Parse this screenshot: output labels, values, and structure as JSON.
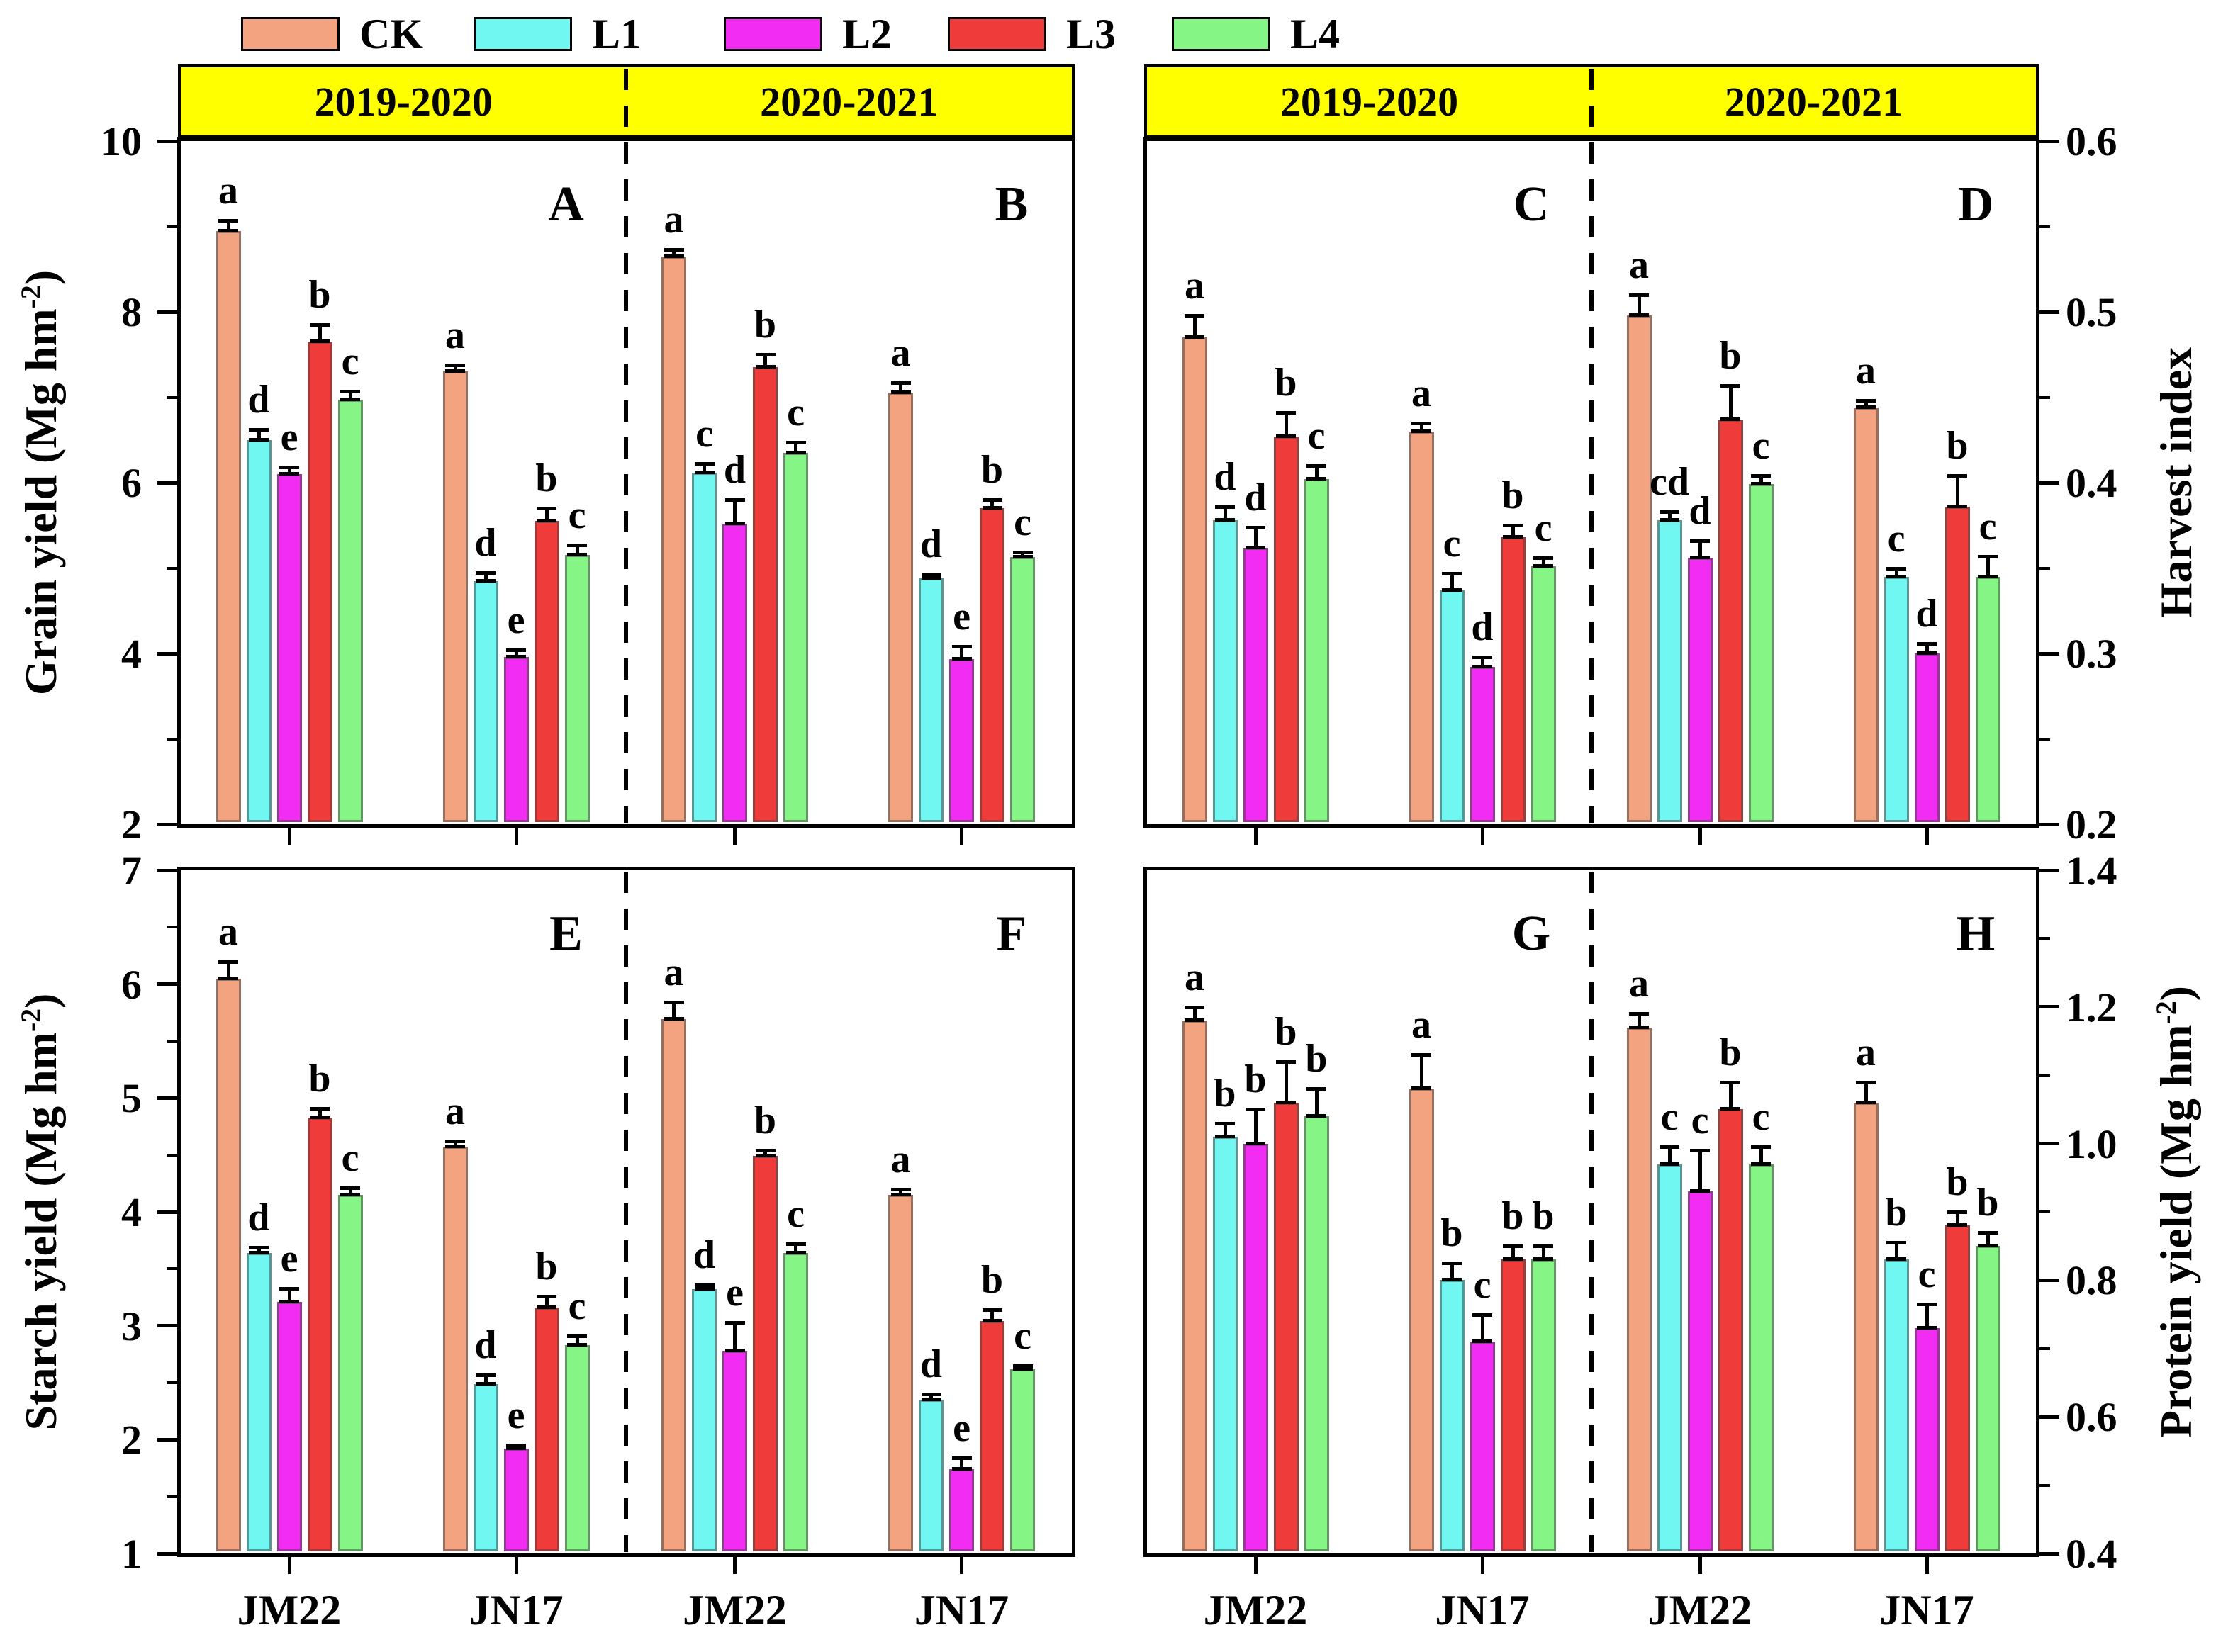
{
  "legend": {
    "items": [
      {
        "label": "CK",
        "color": "#F4A380"
      },
      {
        "label": "L1",
        "color": "#70F7F2"
      },
      {
        "label": "L2",
        "color": "#F32CF3"
      },
      {
        "label": "L3",
        "color": "#F03B3B"
      },
      {
        "label": "L4",
        "color": "#85F585"
      }
    ]
  },
  "headers": {
    "cells": [
      "2019-2020",
      "2020-2021",
      "2019-2020",
      "2020-2021"
    ],
    "background": "#FFFF00"
  },
  "axes": {
    "left_top": {
      "title_prefix": "Grain yield (Mg hm",
      "title_sup": "-2",
      "title_suffix": ")",
      "ylim": [
        2,
        10
      ],
      "tick_labels": [
        "10",
        "8",
        "6",
        "4",
        "2"
      ],
      "tick_values": [
        10,
        8,
        6,
        4,
        2
      ],
      "minor_values": [
        9,
        7,
        5,
        3
      ]
    },
    "right_top": {
      "title_prefix": "Harvest index",
      "title_sup": "",
      "title_suffix": "",
      "ylim": [
        0.2,
        0.6
      ],
      "tick_labels": [
        "0.6",
        "0.5",
        "0.4",
        "0.3",
        "0.2"
      ],
      "tick_values": [
        0.6,
        0.5,
        0.4,
        0.3,
        0.2
      ],
      "minor_values": [
        0.55,
        0.45,
        0.35,
        0.25
      ]
    },
    "left_bottom": {
      "title_prefix": "Starch yield (Mg hm",
      "title_sup": "-2",
      "title_suffix": ")",
      "ylim": [
        1,
        7
      ],
      "tick_labels": [
        "7",
        "6",
        "5",
        "4",
        "3",
        "2",
        "1"
      ],
      "tick_values": [
        7,
        6,
        5,
        4,
        3,
        2,
        1
      ],
      "minor_values": [
        6.5,
        5.5,
        4.5,
        3.5,
        2.5,
        1.5
      ]
    },
    "right_bottom": {
      "title_prefix": "Protein yield (Mg hm",
      "title_sup": "-2",
      "title_suffix": ")",
      "ylim": [
        0.4,
        1.4
      ],
      "tick_labels": [
        "1.4",
        "1.2",
        "1.0",
        "0.8",
        "0.6",
        "0.4"
      ],
      "tick_values": [
        1.4,
        1.2,
        1.0,
        0.8,
        0.6,
        0.4
      ],
      "minor_values": [
        1.3,
        1.1,
        0.9,
        0.7,
        0.5
      ]
    }
  },
  "x_axis": {
    "bottom_labels": [
      "JM22",
      "JN17",
      "JM22",
      "JN17",
      "JM22",
      "JN17",
      "JM22",
      "JN17"
    ]
  },
  "chart_data": [
    {
      "type": "bar",
      "panel_label": "A",
      "measure": "Grain yield (Mg hm-2)",
      "year": "2019-2020",
      "ylim": [
        2,
        10
      ],
      "categories": [
        "JM22",
        "JN17"
      ],
      "treatments": [
        "CK",
        "L1",
        "L2",
        "L3",
        "L4"
      ],
      "values": [
        [
          8.95,
          6.5,
          6.1,
          7.65,
          6.97
        ],
        [
          7.3,
          4.85,
          3.96,
          5.55,
          5.15
        ]
      ],
      "errors": [
        [
          0.12,
          0.12,
          0.08,
          0.2,
          0.1
        ],
        [
          0.08,
          0.1,
          0.08,
          0.15,
          0.12
        ]
      ],
      "letters": [
        [
          "a",
          "d",
          "e",
          "b",
          "c"
        ],
        [
          "a",
          "d",
          "e",
          "b",
          "c"
        ]
      ]
    },
    {
      "type": "bar",
      "panel_label": "B",
      "measure": "Grain yield (Mg hm-2)",
      "year": "2020-2021",
      "ylim": [
        2,
        10
      ],
      "categories": [
        "JM22",
        "JN17"
      ],
      "treatments": [
        "CK",
        "L1",
        "L2",
        "L3",
        "L4"
      ],
      "values": [
        [
          8.65,
          6.12,
          5.52,
          7.35,
          6.35
        ],
        [
          7.05,
          4.88,
          3.93,
          5.7,
          5.13
        ]
      ],
      "errors": [
        [
          0.08,
          0.1,
          0.28,
          0.15,
          0.12
        ],
        [
          0.12,
          0.05,
          0.15,
          0.1,
          0.06
        ]
      ],
      "letters": [
        [
          "a",
          "c",
          "d",
          "b",
          "c"
        ],
        [
          "a",
          "d",
          "e",
          "b",
          "c"
        ]
      ]
    },
    {
      "type": "bar",
      "panel_label": "C",
      "measure": "Harvest index",
      "year": "2019-2020",
      "ylim": [
        0.2,
        0.6
      ],
      "categories": [
        "JM22",
        "JN17"
      ],
      "treatments": [
        "CK",
        "L1",
        "L2",
        "L3",
        "L4"
      ],
      "values": [
        [
          0.485,
          0.378,
          0.362,
          0.427,
          0.402
        ],
        [
          0.43,
          0.337,
          0.292,
          0.368,
          0.351
        ]
      ],
      "errors": [
        [
          0.013,
          0.008,
          0.012,
          0.014,
          0.008
        ],
        [
          0.005,
          0.01,
          0.006,
          0.007,
          0.005
        ]
      ],
      "letters": [
        [
          "a",
          "d",
          "d",
          "b",
          "c"
        ],
        [
          "a",
          "c",
          "d",
          "b",
          "c"
        ]
      ]
    },
    {
      "type": "bar",
      "panel_label": "D",
      "measure": "Harvest index",
      "year": "2020-2021",
      "ylim": [
        0.2,
        0.6
      ],
      "categories": [
        "JM22",
        "JN17"
      ],
      "treatments": [
        "CK",
        "L1",
        "L2",
        "L3",
        "L4"
      ],
      "values": [
        [
          0.498,
          0.378,
          0.356,
          0.437,
          0.399
        ],
        [
          0.444,
          0.345,
          0.3,
          0.386,
          0.345
        ]
      ],
      "errors": [
        [
          0.012,
          0.005,
          0.01,
          0.02,
          0.005
        ],
        [
          0.004,
          0.005,
          0.006,
          0.018,
          0.012
        ]
      ],
      "letters": [
        [
          "a",
          "cd",
          "d",
          "b",
          "c"
        ],
        [
          "a",
          "c",
          "d",
          "b",
          "c"
        ]
      ]
    },
    {
      "type": "bar",
      "panel_label": "E",
      "measure": "Starch yield (Mg hm-2)",
      "year": "2019-2020",
      "ylim": [
        1,
        7
      ],
      "categories": [
        "JM22",
        "JN17"
      ],
      "treatments": [
        "CK",
        "L1",
        "L2",
        "L3",
        "L4"
      ],
      "values": [
        [
          6.05,
          3.64,
          3.21,
          4.83,
          4.15
        ],
        [
          4.57,
          2.49,
          1.92,
          3.16,
          2.83
        ]
      ],
      "errors": [
        [
          0.15,
          0.05,
          0.12,
          0.08,
          0.06
        ],
        [
          0.05,
          0.08,
          0.03,
          0.1,
          0.08
        ]
      ],
      "letters": [
        [
          "a",
          "d",
          "e",
          "b",
          "c"
        ],
        [
          "a",
          "d",
          "e",
          "b",
          "c"
        ]
      ]
    },
    {
      "type": "bar",
      "panel_label": "F",
      "measure": "Starch yield (Mg hm-2)",
      "year": "2020-2021",
      "ylim": [
        1,
        7
      ],
      "categories": [
        "JM22",
        "JN17"
      ],
      "treatments": [
        "CK",
        "L1",
        "L2",
        "L3",
        "L4"
      ],
      "values": [
        [
          5.69,
          3.32,
          2.78,
          4.49,
          3.64
        ],
        [
          4.15,
          2.35,
          1.74,
          3.04,
          2.62
        ]
      ],
      "errors": [
        [
          0.15,
          0.04,
          0.25,
          0.05,
          0.08
        ],
        [
          0.05,
          0.05,
          0.1,
          0.1,
          0.03
        ]
      ],
      "letters": [
        [
          "a",
          "d",
          "e",
          "b",
          "c"
        ],
        [
          "a",
          "d",
          "e",
          "b",
          "c"
        ]
      ]
    },
    {
      "type": "bar",
      "panel_label": "G",
      "measure": "Protein yield (Mg hm-2)",
      "year": "2019-2020",
      "ylim": [
        0.4,
        1.4
      ],
      "categories": [
        "JM22",
        "JN17"
      ],
      "treatments": [
        "CK",
        "L1",
        "L2",
        "L3",
        "L4"
      ],
      "values": [
        [
          1.18,
          1.01,
          1.0,
          1.06,
          1.04
        ],
        [
          1.08,
          0.8,
          0.71,
          0.83,
          0.83
        ]
      ],
      "errors": [
        [
          0.02,
          0.02,
          0.05,
          0.06,
          0.04
        ],
        [
          0.05,
          0.025,
          0.04,
          0.02,
          0.02
        ]
      ],
      "letters": [
        [
          "a",
          "b",
          "b",
          "b",
          "b"
        ],
        [
          "a",
          "b",
          "c",
          "b",
          "b"
        ]
      ]
    },
    {
      "type": "bar",
      "panel_label": "H",
      "measure": "Protein yield (Mg hm-2)",
      "year": "2020-2021",
      "ylim": [
        0.4,
        1.4
      ],
      "categories": [
        "JM22",
        "JN17"
      ],
      "treatments": [
        "CK",
        "L1",
        "L2",
        "L3",
        "L4"
      ],
      "values": [
        [
          1.17,
          0.97,
          0.93,
          1.05,
          0.97
        ],
        [
          1.06,
          0.83,
          0.73,
          0.88,
          0.85
        ]
      ],
      "errors": [
        [
          0.02,
          0.025,
          0.06,
          0.04,
          0.025
        ],
        [
          0.03,
          0.025,
          0.035,
          0.02,
          0.02
        ]
      ],
      "letters": [
        [
          "a",
          "c",
          "c",
          "b",
          "c"
        ],
        [
          "a",
          "b",
          "c",
          "b",
          "b"
        ]
      ]
    }
  ]
}
